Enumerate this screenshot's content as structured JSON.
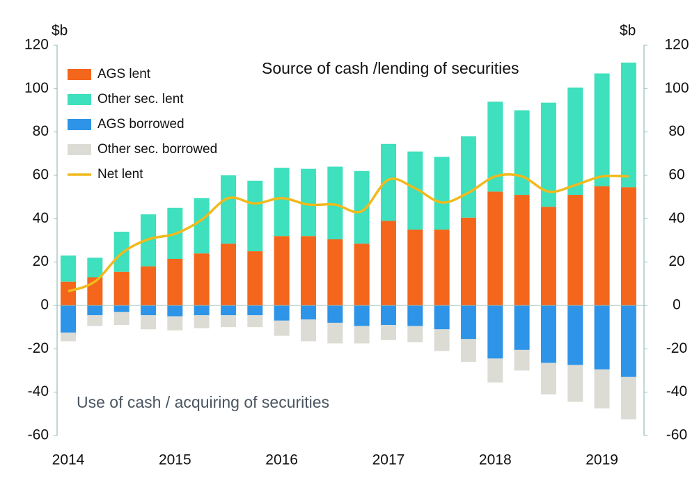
{
  "chart_data": {
    "type": "bar",
    "annotations": [
      "Source of cash /lending of securities",
      "Use of cash / acquiring of securities"
    ],
    "y_unit": "$b",
    "y2_unit": "$b",
    "categories": [
      "2014",
      null,
      null,
      null,
      "2015",
      null,
      null,
      null,
      "2016",
      null,
      null,
      null,
      "2017",
      null,
      null,
      null,
      "2018",
      null,
      null,
      null,
      "2019",
      null
    ],
    "series": [
      {
        "name": "AGS lent",
        "color": "#f4661b",
        "stack": "pos",
        "values": [
          11,
          13,
          15.5,
          18,
          21.5,
          24,
          28.5,
          25,
          32,
          32,
          30.5,
          28.5,
          39,
          35,
          35,
          40.5,
          52.5,
          51,
          45.5,
          51,
          55,
          54.5
        ]
      },
      {
        "name": "Other sec. lent",
        "color": "#3ee0bd",
        "stack": "pos",
        "values": [
          12,
          9,
          18.5,
          24,
          23.5,
          25.5,
          31.5,
          32.5,
          31.5,
          31,
          33.5,
          33.5,
          35.5,
          36,
          33.5,
          37.5,
          41.5,
          39,
          48,
          49.5,
          52,
          57.5
        ]
      },
      {
        "name": "AGS borrowed",
        "color": "#2e94e8",
        "stack": "neg",
        "values": [
          -12.5,
          -4.5,
          -3,
          -4.5,
          -5,
          -4.5,
          -4.5,
          -4.5,
          -7,
          -6.5,
          -8,
          -9.5,
          -9,
          -9.5,
          -11,
          -15.5,
          -24.5,
          -20.5,
          -26.5,
          -27.5,
          -29.5,
          -33
        ]
      },
      {
        "name": "Other sec. borrowed",
        "color": "#dcdcd5",
        "stack": "neg",
        "values": [
          -4,
          -5,
          -6,
          -6.5,
          -6.5,
          -6,
          -5.5,
          -5.5,
          -7,
          -10,
          -9.5,
          -8,
          -7,
          -7.5,
          -10,
          -10.5,
          -11,
          -9.5,
          -14.5,
          -17,
          -18,
          -19.5
        ]
      },
      {
        "name": "Net lent",
        "color": "#f2b91c",
        "type": "line",
        "values": [
          6.5,
          11,
          24,
          30.5,
          33,
          39.5,
          49.5,
          47,
          49.5,
          46.5,
          46.5,
          43.5,
          58,
          54,
          47.5,
          52,
          59.5,
          59.5,
          52.5,
          55.5,
          59.5,
          59.5
        ]
      }
    ],
    "ylim": [
      -60,
      120
    ],
    "yticks": [
      -60,
      -40,
      -20,
      0,
      20,
      40,
      60,
      80,
      100,
      120
    ],
    "y2lim": [
      -60,
      120
    ],
    "y2ticks": [
      -60,
      -40,
      -20,
      0,
      20,
      40,
      60,
      80,
      100,
      120
    ],
    "legend": "top-left"
  }
}
